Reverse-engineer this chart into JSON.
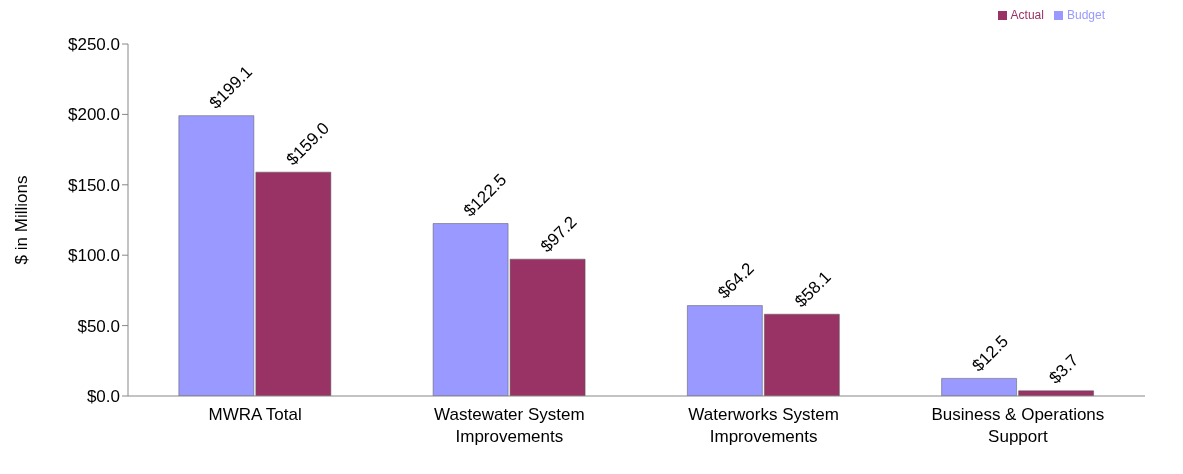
{
  "chart_data": {
    "type": "bar",
    "ylabel": "$ in Millions",
    "categories": [
      "MWRA Total",
      "Wastewater System Improvements",
      "Waterworks System Improvements",
      "Business & Operations Support"
    ],
    "series": [
      {
        "name": "Budget",
        "color": "#9999ff",
        "values": [
          199.1,
          122.5,
          64.2,
          12.5
        ],
        "value_labels": [
          "$199.1",
          "$122.5",
          "$64.2",
          "$12.5"
        ]
      },
      {
        "name": "Actual",
        "color": "#993366",
        "values": [
          159.0,
          97.2,
          58.1,
          3.7
        ],
        "value_labels": [
          "$159.0",
          "$97.2",
          "$58.1",
          "$3.7"
        ]
      }
    ],
    "ylim": [
      0,
      250
    ],
    "yticks": [
      {
        "value": 0,
        "label": "$0.0"
      },
      {
        "value": 50,
        "label": "$50.0"
      },
      {
        "value": 100,
        "label": "$100.0"
      },
      {
        "value": 150,
        "label": "$150.0"
      },
      {
        "value": 200,
        "label": "$200.0"
      },
      {
        "value": 250,
        "label": "$250.0"
      }
    ],
    "grid": false,
    "legend": "top right"
  }
}
